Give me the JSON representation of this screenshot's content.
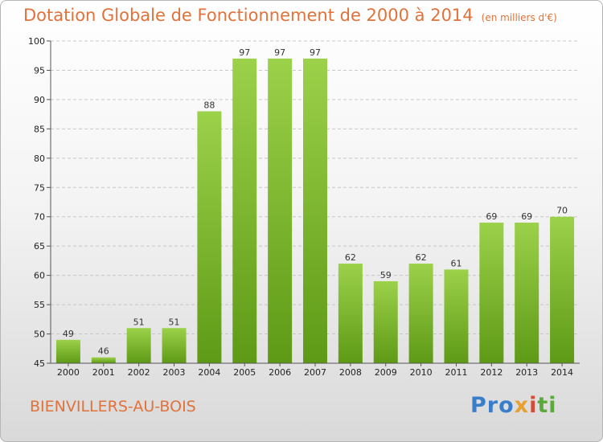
{
  "title": "Dotation Globale de Fonctionnement de 2000 à 2014",
  "subtitle": "(en milliers d'€)",
  "commune": "BIENVILLERS-AU-BOIS",
  "logo": {
    "part1": "Pro",
    "part2": "x",
    "part3": "i",
    "part4": "ti"
  },
  "colors": {
    "bar_top": "#9cd14a",
    "bar_bottom": "#5e9a16",
    "title": "#e0723a"
  },
  "chart_data": {
    "type": "bar",
    "title": "Dotation Globale de Fonctionnement de 2000 à 2014",
    "subtitle": "(en milliers d'€)",
    "xlabel": "",
    "ylabel": "",
    "categories": [
      "2000",
      "2001",
      "2002",
      "2003",
      "2004",
      "2005",
      "2006",
      "2007",
      "2008",
      "2009",
      "2010",
      "2011",
      "2012",
      "2013",
      "2014"
    ],
    "values": [
      49,
      46,
      51,
      51,
      88,
      97,
      97,
      97,
      62,
      59,
      62,
      61,
      69,
      69,
      70
    ],
    "ylim": [
      45,
      100
    ],
    "yticks": [
      45,
      50,
      55,
      60,
      65,
      70,
      75,
      80,
      85,
      90,
      95,
      100
    ],
    "grid": true,
    "legend": "none"
  }
}
